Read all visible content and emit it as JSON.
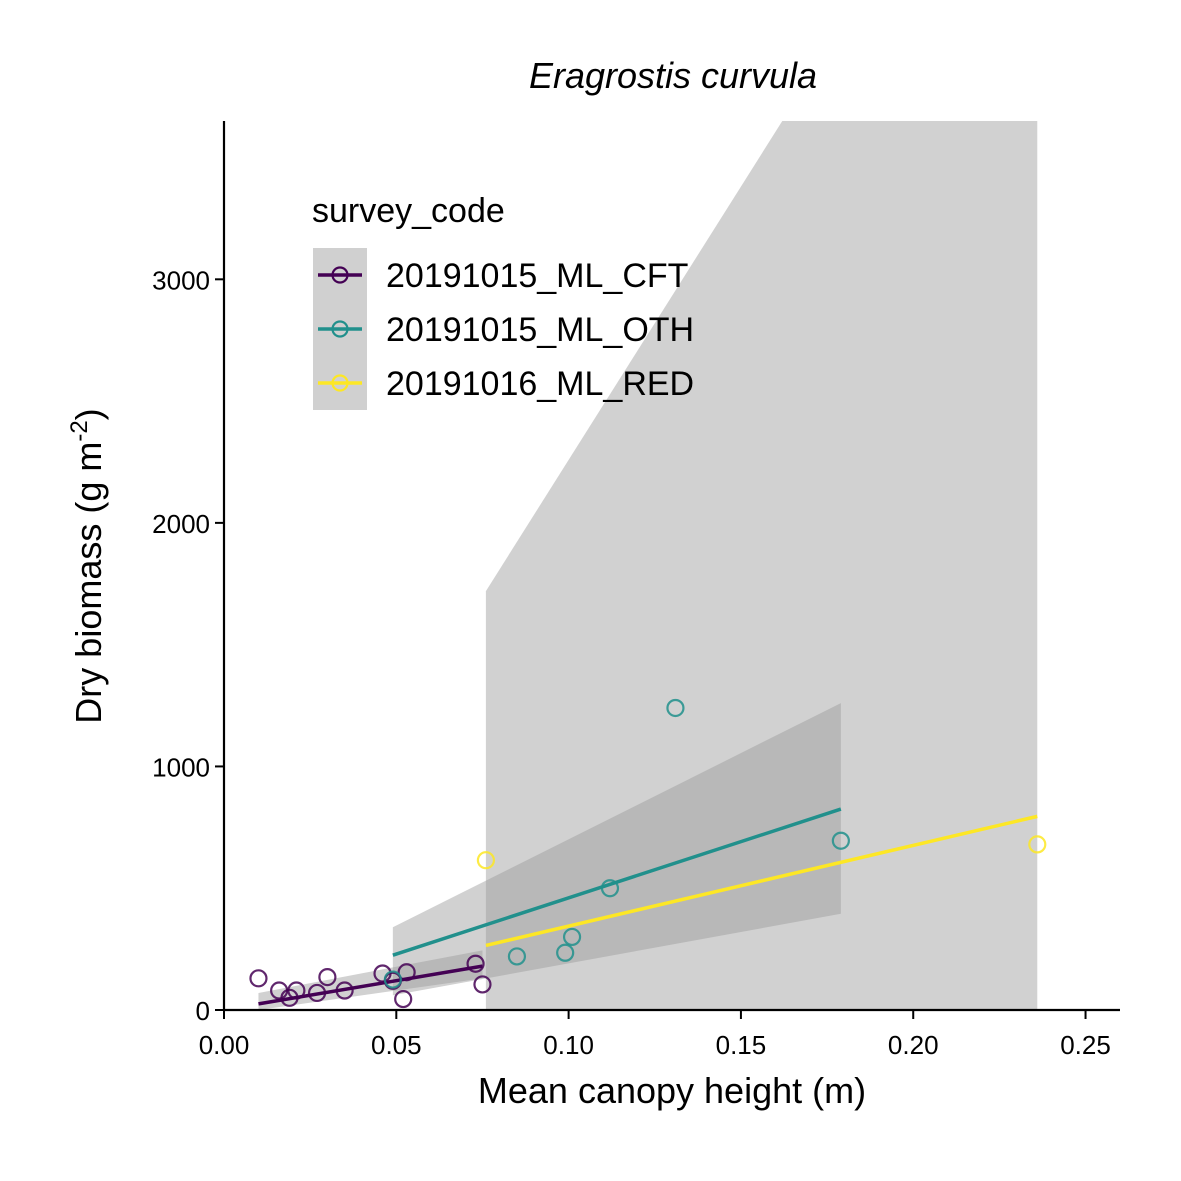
{
  "chart_data": {
    "type": "scatter",
    "title": "Eragrostis curvula",
    "xlabel": "Mean canopy height (m)",
    "ylabel": "Dry biomass (g m",
    "ylabel_superscript": "-2",
    "ylabel_suffix": ")",
    "xlim": [
      0,
      0.26
    ],
    "ylim": [
      0,
      3650
    ],
    "x_ticks": [
      0.0,
      0.05,
      0.1,
      0.15,
      0.2,
      0.25
    ],
    "x_tick_labels": [
      "0.00",
      "0.05",
      "0.10",
      "0.15",
      "0.20",
      "0.25"
    ],
    "y_ticks": [
      0,
      1000,
      2000,
      3000
    ],
    "y_tick_labels": [
      "0",
      "1000",
      "2000",
      "3000"
    ],
    "grid": false,
    "legend": {
      "title": "survey_code",
      "placement": "top-left"
    },
    "series": [
      {
        "name": "20191015_ML_CFT",
        "color": "#440154",
        "points": [
          {
            "x": 0.01,
            "y": 130
          },
          {
            "x": 0.016,
            "y": 80
          },
          {
            "x": 0.019,
            "y": 50
          },
          {
            "x": 0.021,
            "y": 80
          },
          {
            "x": 0.027,
            "y": 70
          },
          {
            "x": 0.03,
            "y": 135
          },
          {
            "x": 0.035,
            "y": 80
          },
          {
            "x": 0.046,
            "y": 150
          },
          {
            "x": 0.049,
            "y": 120
          },
          {
            "x": 0.052,
            "y": 45
          },
          {
            "x": 0.053,
            "y": 155
          },
          {
            "x": 0.073,
            "y": 190
          },
          {
            "x": 0.075,
            "y": 105
          }
        ],
        "fit": {
          "x": [
            0.01,
            0.075
          ],
          "y": [
            25,
            180
          ]
        },
        "ci_band": {
          "x": [
            0.01,
            0.075
          ],
          "lower": [
            0,
            130
          ],
          "upper": [
            70,
            245
          ]
        }
      },
      {
        "name": "20191015_ML_OTH",
        "color": "#21908C",
        "points": [
          {
            "x": 0.049,
            "y": 125
          },
          {
            "x": 0.085,
            "y": 220
          },
          {
            "x": 0.099,
            "y": 235
          },
          {
            "x": 0.101,
            "y": 300
          },
          {
            "x": 0.112,
            "y": 500
          },
          {
            "x": 0.131,
            "y": 1240
          },
          {
            "x": 0.179,
            "y": 695
          }
        ],
        "fit": {
          "x": [
            0.049,
            0.179
          ],
          "y": [
            225,
            825
          ]
        },
        "ci_band": {
          "x": [
            0.049,
            0.179
          ],
          "lower": [
            60,
            395
          ],
          "upper": [
            340,
            1260
          ]
        }
      },
      {
        "name": "20191016_ML_RED",
        "color": "#FDE725",
        "points": [
          {
            "x": 0.076,
            "y": 615
          },
          {
            "x": 0.236,
            "y": 680
          }
        ],
        "fit": {
          "x": [
            0.076,
            0.236
          ],
          "y": [
            265,
            795
          ]
        },
        "ci_band": {
          "x": [
            0.076,
            0.162,
            0.236
          ],
          "lower": [
            0,
            0,
            0
          ],
          "upper": [
            1720,
            3650,
            3650
          ]
        }
      }
    ]
  }
}
